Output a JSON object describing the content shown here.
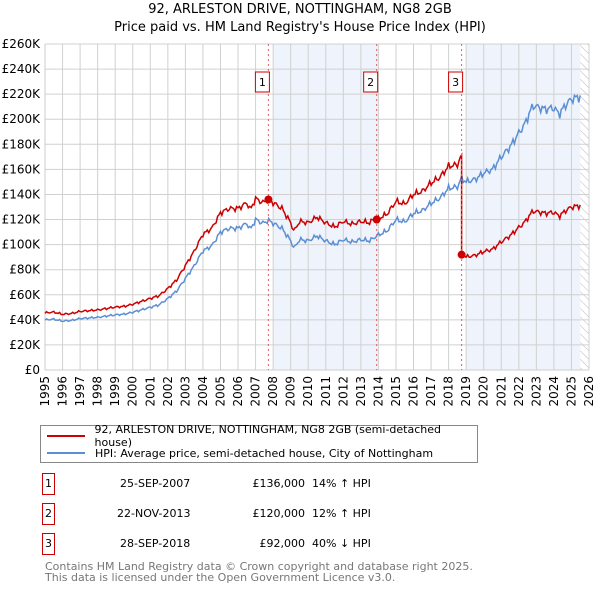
{
  "title_line1": "92, ARLESTON DRIVE, NOTTINGHAM, NG8 2GB",
  "title_line2": "Price paid vs. HM Land Registry's House Price Index (HPI)",
  "chart_data": {
    "type": "line",
    "title": "92, ARLESTON DRIVE, NOTTINGHAM, NG8 2GB — Price paid vs. HM Land Registry's House Price Index (HPI)",
    "xlim": [
      1995,
      2026
    ],
    "ylim": [
      0,
      260000
    ],
    "x_ticks": [
      "1995",
      "1996",
      "1997",
      "1998",
      "1999",
      "2000",
      "2001",
      "2002",
      "2003",
      "2004",
      "2005",
      "2006",
      "2007",
      "2008",
      "2009",
      "2010",
      "2011",
      "2012",
      "2013",
      "2014",
      "2015",
      "2016",
      "2017",
      "2018",
      "2019",
      "2020",
      "2021",
      "2022",
      "2023",
      "2024",
      "2025",
      "2026"
    ],
    "y_ticks": [
      "£0",
      "£20K",
      "£40K",
      "£60K",
      "£80K",
      "£100K",
      "£120K",
      "£140K",
      "£160K",
      "£180K",
      "£200K",
      "£220K",
      "£240K",
      "£260K"
    ],
    "grid": true,
    "colors": {
      "property": "#cc0000",
      "hpi": "#5b8fd4",
      "shade": "#eef3fc"
    },
    "hpi_series": {
      "name": "HPI: Average price, semi-detached house, City of Nottingham",
      "x": [
        1995,
        1995.5,
        1996,
        1996.5,
        1997,
        1997.5,
        1998,
        1998.5,
        1999,
        1999.5,
        2000,
        2000.5,
        2001,
        2001.5,
        2002,
        2002.5,
        2003,
        2003.5,
        2004,
        2004.5,
        2005,
        2005.5,
        2006,
        2006.5,
        2006.7,
        2007,
        2007.4,
        2007.73,
        2008,
        2008.5,
        2009,
        2009.2,
        2009.5,
        2010,
        2010.5,
        2011,
        2011.5,
        2012,
        2012.5,
        2013,
        2013.5,
        2013.9,
        2014.5,
        2015,
        2015.5,
        2016,
        2016.5,
        2017,
        2017.5,
        2018,
        2018.5,
        2018.74,
        2019,
        2019.5,
        2020,
        2020.5,
        2021,
        2021.5,
        2022,
        2022.3,
        2022.8,
        2023,
        2023.5,
        2024,
        2024.3,
        2024.7,
        2025,
        2025.5
      ],
      "y": [
        40000,
        40500,
        39000,
        39500,
        41000,
        41500,
        42000,
        43000,
        44000,
        44500,
        46000,
        48000,
        50000,
        52000,
        57000,
        63000,
        73000,
        83000,
        95000,
        99000,
        110000,
        113000,
        113000,
        117000,
        112000,
        120000,
        117000,
        119300,
        117000,
        113000,
        103000,
        97000,
        104000,
        103000,
        107000,
        103000,
        100000,
        104000,
        102000,
        104000,
        103000,
        107000,
        111000,
        120000,
        118000,
        125000,
        127000,
        133000,
        137000,
        145000,
        146000,
        153000,
        150000,
        152000,
        157000,
        160000,
        170000,
        178000,
        189000,
        195000,
        211000,
        210000,
        208000,
        209000,
        204000,
        212000,
        216000,
        218000
      ]
    },
    "property_series": {
      "name": "92, ARLESTON DRIVE, NOTTINGHAM, NG8 2GB (semi-detached house)"
    },
    "sales": [
      {
        "id": "1",
        "x": 2007.73,
        "date": "25-SEP-2007",
        "price": 136000,
        "price_label": "£136,000",
        "hpi_label": "14% ↑ HPI"
      },
      {
        "id": "2",
        "x": 2013.9,
        "date": "22-NOV-2013",
        "price": 120000,
        "price_label": "£120,000",
        "hpi_label": "12% ↑ HPI"
      },
      {
        "id": "3",
        "x": 2018.74,
        "date": "28-SEP-2018",
        "price": 92000,
        "price_label": "£92,000",
        "hpi_label": "40% ↓ HPI"
      }
    ],
    "shaded_periods": [
      [
        2008,
        2014
      ],
      [
        2019,
        2025.5
      ]
    ],
    "forecast_from": 2025.5
  },
  "legend": {
    "property": "92, ARLESTON DRIVE, NOTTINGHAM, NG8 2GB (semi-detached house)",
    "hpi": "HPI: Average price, semi-detached house, City of Nottingham"
  },
  "footer": {
    "line1": "Contains HM Land Registry data © Crown copyright and database right 2025.",
    "line2": "This data is licensed under the Open Government Licence v3.0."
  }
}
